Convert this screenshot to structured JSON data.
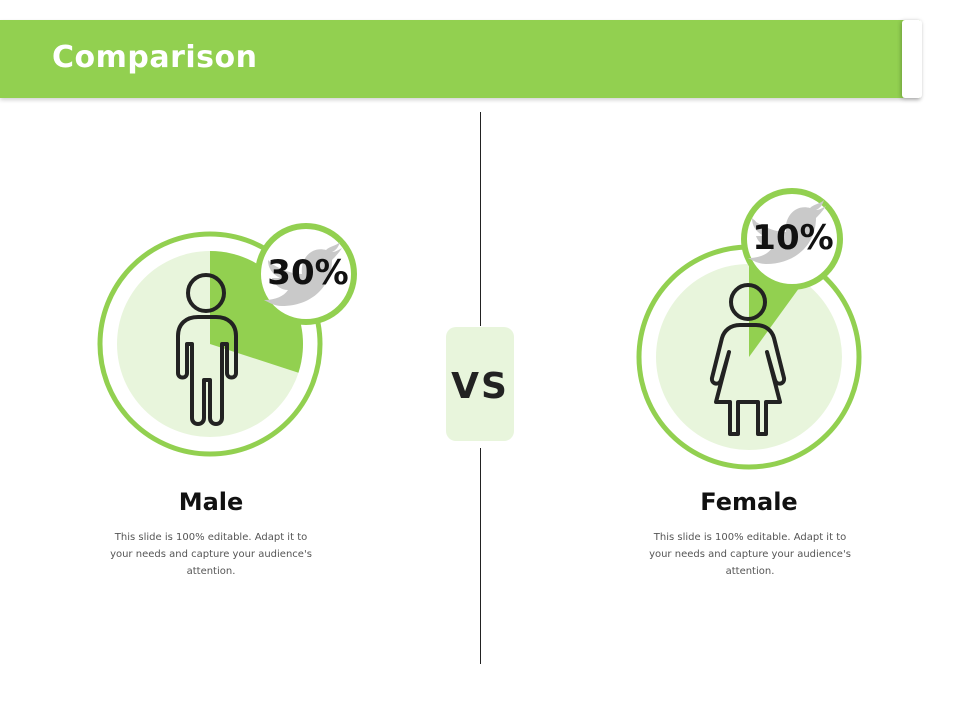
{
  "header": {
    "title": "Comparison"
  },
  "vs_label": "VS",
  "chart_data": {
    "type": "pie",
    "series": [
      {
        "label": "Male",
        "percent_label": "30%",
        "value": 30,
        "description": "This slide is 100% editable. Adapt it to your needs and capture your audience's attention."
      },
      {
        "label": "Female",
        "percent_label": "10%",
        "value": 10,
        "description": "This slide is 100% editable. Adapt it to your needs and capture your audience's attention."
      }
    ]
  },
  "colors": {
    "accent": "#92d050",
    "accent_light": "#e8f5dc",
    "icon_gray": "#c9c9c9",
    "text_dark": "#111111"
  },
  "icons": [
    "male-person-icon",
    "female-person-icon",
    "twitter-bird-icon"
  ]
}
